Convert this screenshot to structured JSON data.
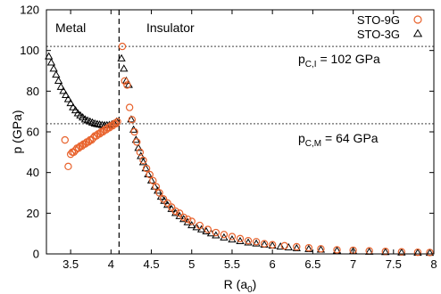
{
  "chart_data": {
    "type": "scatter",
    "xlabel": "R (a",
    "xlabel_sub": "0",
    "xlabel_close": ")",
    "ylabel": "p (GPa)",
    "xlim": [
      3.2,
      8
    ],
    "ylim": [
      0,
      120
    ],
    "xticks": [
      3.5,
      4,
      4.5,
      5,
      5.5,
      6,
      6.5,
      7,
      7.5,
      8
    ],
    "yticks": [
      0,
      20,
      40,
      60,
      80,
      100,
      120
    ],
    "grid": false,
    "legend_position": "top-right",
    "regions": {
      "left": "Metal",
      "right": "Insulator",
      "boundary_x": 4.1
    },
    "reference_lines": [
      {
        "y": 102,
        "main": "p",
        "sub": "C,I",
        "rest": " = 102 GPa"
      },
      {
        "y": 64,
        "main": "p",
        "sub": "C,M",
        "rest": " = 64 GPa"
      }
    ],
    "colors": {
      "sto9g": "#e8622c",
      "sto3g": "#000000",
      "refline": "#666666"
    },
    "series": [
      {
        "name": "STO-9G",
        "marker": "circle",
        "x": [
          3.43,
          3.47,
          3.5,
          3.52,
          3.54,
          3.56,
          3.58,
          3.6,
          3.62,
          3.64,
          3.66,
          3.68,
          3.7,
          3.72,
          3.74,
          3.76,
          3.78,
          3.8,
          3.82,
          3.84,
          3.86,
          3.88,
          3.9,
          3.92,
          3.94,
          3.96,
          3.98,
          4.0,
          4.02,
          4.04,
          4.06,
          4.08,
          4.14,
          4.17,
          4.2,
          4.23,
          4.26,
          4.29,
          4.32,
          4.36,
          4.4,
          4.44,
          4.48,
          4.52,
          4.56,
          4.6,
          4.65,
          4.7,
          4.75,
          4.8,
          4.85,
          4.9,
          4.95,
          5.0,
          5.1,
          5.2,
          5.3,
          5.4,
          5.5,
          5.6,
          5.7,
          5.8,
          5.9,
          6.0,
          6.15,
          6.3,
          6.45,
          6.6,
          6.8,
          7.0,
          7.2,
          7.4,
          7.6,
          7.8,
          7.95
        ],
        "y": [
          56,
          43,
          49,
          50,
          50,
          51,
          52,
          52,
          53,
          53,
          54,
          54,
          55,
          55,
          56,
          56,
          57,
          58,
          58,
          59,
          59,
          60,
          60,
          61,
          61,
          62,
          62,
          63,
          63,
          64,
          64,
          65,
          102,
          85,
          83,
          72,
          66,
          60,
          55,
          50,
          46,
          42,
          39,
          36,
          33,
          30,
          27,
          25,
          23,
          21,
          20,
          18,
          17,
          16,
          14,
          12,
          10.5,
          9.5,
          8.5,
          7.5,
          6.5,
          6,
          5,
          4.5,
          4,
          3.5,
          3,
          2.5,
          2,
          1.8,
          1.5,
          1.2,
          1,
          0.8,
          0.7
        ]
      },
      {
        "name": "STO-3G",
        "marker": "triangle",
        "x": [
          3.23,
          3.26,
          3.29,
          3.32,
          3.35,
          3.38,
          3.41,
          3.44,
          3.47,
          3.5,
          3.53,
          3.56,
          3.59,
          3.62,
          3.65,
          3.68,
          3.71,
          3.74,
          3.77,
          3.8,
          3.83,
          3.86,
          3.89,
          3.92,
          3.95,
          3.98,
          4.01,
          4.04,
          4.07,
          4.13,
          4.16,
          4.19,
          4.22,
          4.25,
          4.28,
          4.31,
          4.34,
          4.37,
          4.4,
          4.43,
          4.46,
          4.5,
          4.54,
          4.58,
          4.62,
          4.66,
          4.7,
          4.75,
          4.8,
          4.85,
          4.9,
          4.95,
          5.0,
          5.06,
          5.12,
          5.18,
          5.24,
          5.3,
          5.4,
          5.5,
          5.6,
          5.7,
          5.8,
          5.9,
          6.0,
          6.1,
          6.2,
          6.3,
          6.45,
          6.6,
          6.8,
          7.0,
          7.2,
          7.4,
          7.6,
          7.8,
          7.95
        ],
        "y": [
          97,
          94,
          91,
          88,
          85,
          82,
          80,
          78,
          76,
          74,
          72,
          70.5,
          69,
          68,
          67,
          66,
          65.5,
          65,
          64.5,
          64,
          63.7,
          63.5,
          63.3,
          63.2,
          63.2,
          63.3,
          63.6,
          64,
          65,
          96,
          91,
          85,
          83,
          66,
          61,
          56,
          52,
          48,
          45,
          42,
          39,
          36,
          33,
          31,
          28,
          26,
          24,
          22,
          20,
          18.5,
          17,
          15.5,
          14,
          13,
          12,
          11,
          10,
          9,
          8,
          7,
          6.2,
          5.5,
          5,
          4.5,
          4,
          3.5,
          3.1,
          2.7,
          2.3,
          2,
          1.6,
          1.3,
          1,
          0.8,
          0.6,
          0.5,
          0.4
        ]
      }
    ]
  }
}
